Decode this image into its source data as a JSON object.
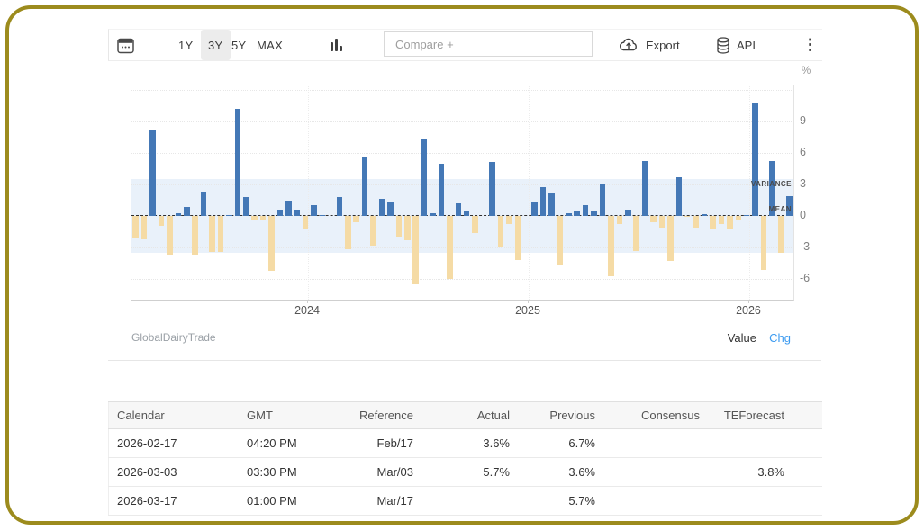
{
  "toolbar": {
    "ranges": [
      {
        "label": "1Y",
        "selected": false
      },
      {
        "label": "3Y",
        "selected": true
      },
      {
        "label": "5Y",
        "selected": false
      },
      {
        "label": "MAX",
        "selected": false
      }
    ],
    "compare_placeholder": "Compare +",
    "export_label": "Export",
    "api_label": "API"
  },
  "chart_data": {
    "type": "bar",
    "series_name": "GlobalDairyTrade",
    "unit": "%",
    "values": [
      -2.1,
      -2.2,
      8.1,
      -0.9,
      -3.7,
      0.3,
      0.9,
      -3.7,
      2.3,
      -3.4,
      -3.4,
      0.1,
      10.2,
      1.8,
      -0.4,
      -0.4,
      -5.2,
      0.6,
      1.5,
      0.6,
      -1.3,
      1.0,
      0.1,
      0.0,
      1.8,
      -3.2,
      -0.6,
      5.6,
      -2.8,
      1.6,
      1.4,
      -2.0,
      -2.3,
      -6.5,
      7.4,
      0.3,
      5.0,
      -6.0,
      1.2,
      0.4,
      -1.6,
      0.0,
      5.1,
      -3.0,
      -0.8,
      -4.2,
      0.0,
      1.4,
      2.7,
      2.2,
      -4.6,
      0.3,
      0.5,
      1.0,
      0.5,
      3.0,
      -5.7,
      -0.8,
      0.6,
      -3.3,
      5.2,
      -0.6,
      -1.1,
      -4.3,
      3.7,
      -0.1,
      -1.1,
      0.2,
      -1.2,
      -0.8,
      -1.2,
      -0.4,
      0.1,
      10.7,
      -5.1,
      5.2,
      -3.5,
      1.9
    ],
    "x_tick_labels": [
      "2024",
      "2025",
      "2026"
    ],
    "y_ticks": [
      9,
      6,
      3,
      0,
      -3,
      -6
    ],
    "gridline_values": [
      12,
      9,
      6,
      3,
      -3,
      -6
    ],
    "y_axis_unit": "%",
    "ylim": [
      -8,
      12.4
    ],
    "grid": "dotted",
    "legend_position": "none",
    "band": {
      "label": "VARIANCE",
      "from": -3.5,
      "to": 3.5
    },
    "mean_line": {
      "label": "MEAN",
      "value": 0
    }
  },
  "chart_footer": {
    "source": "GlobalDairyTrade",
    "value_label": "Value",
    "chg_label": "Chg"
  },
  "table": {
    "headers": [
      "Calendar",
      "GMT",
      "Reference",
      "Actual",
      "Previous",
      "Consensus",
      "TEForecast"
    ],
    "rows": [
      [
        "2026-02-17",
        "04:20 PM",
        "Feb/17",
        "3.6%",
        "6.7%",
        "",
        ""
      ],
      [
        "2026-03-03",
        "03:30 PM",
        "Mar/03",
        "5.7%",
        "3.6%",
        "",
        "3.8%"
      ],
      [
        "2026-03-17",
        "01:00 PM",
        "Mar/17",
        "",
        "5.7%",
        "",
        ""
      ]
    ]
  },
  "colors": {
    "positive_bar": "#4478b6",
    "negative_bar": "#f5dba5",
    "variance_band": "#e9f1fa",
    "accent_blue": "#3d9bf0",
    "frame_border": "#9c8b1d"
  }
}
